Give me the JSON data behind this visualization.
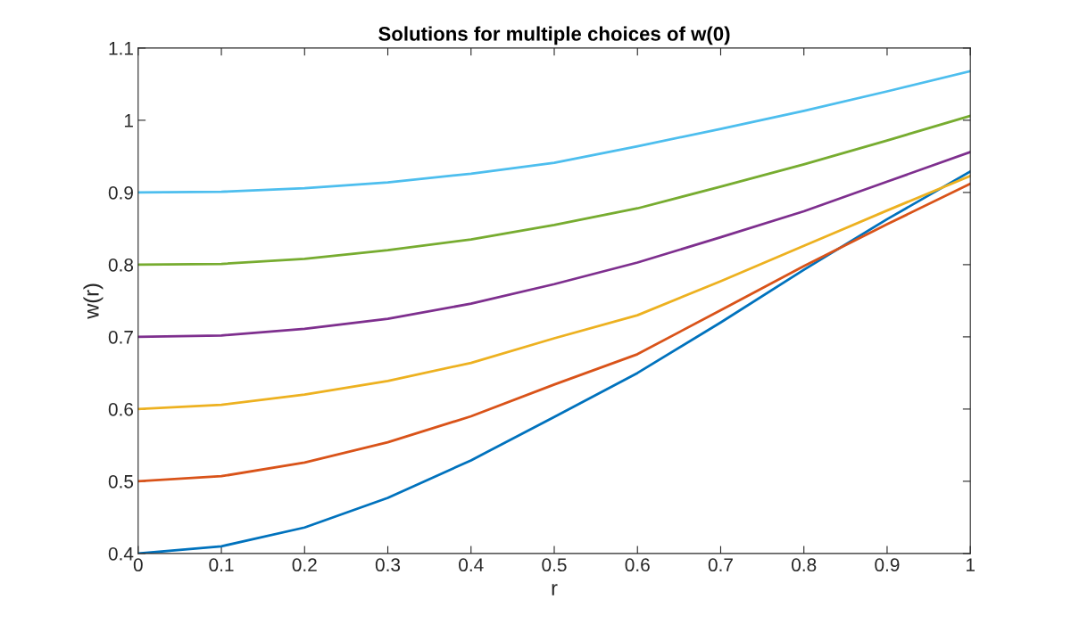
{
  "chart_data": {
    "type": "line",
    "title": "Solutions for multiple choices of w(0)",
    "xlabel": "r",
    "ylabel": "w(r)",
    "x": [
      0,
      0.1,
      0.2,
      0.3,
      0.4,
      0.5,
      0.6,
      0.7,
      0.8,
      0.9,
      1.0
    ],
    "series": [
      {
        "color": "#0072bd",
        "values": [
          0.4,
          0.41,
          0.436,
          0.477,
          0.529,
          0.589,
          0.65,
          0.72,
          0.793,
          0.863,
          0.929
        ]
      },
      {
        "color": "#d95319",
        "values": [
          0.5,
          0.507,
          0.526,
          0.554,
          0.59,
          0.634,
          0.676,
          0.737,
          0.798,
          0.856,
          0.912
        ]
      },
      {
        "color": "#edb120",
        "values": [
          0.6,
          0.606,
          0.62,
          0.639,
          0.664,
          0.698,
          0.73,
          0.777,
          0.826,
          0.875,
          0.923
        ]
      },
      {
        "color": "#7e2f8e",
        "values": [
          0.7,
          0.702,
          0.711,
          0.725,
          0.746,
          0.773,
          0.803,
          0.838,
          0.874,
          0.915,
          0.956
        ]
      },
      {
        "color": "#77ac30",
        "values": [
          0.8,
          0.801,
          0.808,
          0.82,
          0.835,
          0.855,
          0.878,
          0.908,
          0.939,
          0.972,
          1.006
        ]
      },
      {
        "color": "#4dbeee",
        "values": [
          0.9,
          0.901,
          0.906,
          0.914,
          0.926,
          0.941,
          0.964,
          0.988,
          1.013,
          1.04,
          1.068
        ]
      }
    ],
    "xlim": [
      0,
      1
    ],
    "ylim": [
      0.4,
      1.1
    ],
    "xticks": [
      0,
      0.1,
      0.2,
      0.3,
      0.4,
      0.5,
      0.6,
      0.7,
      0.8,
      0.9,
      1
    ],
    "yticks": [
      0.4,
      0.5,
      0.6,
      0.7,
      0.8,
      0.9,
      1,
      1.1
    ],
    "grid": false,
    "legend": false,
    "marker": "none",
    "line_style": "solid"
  }
}
